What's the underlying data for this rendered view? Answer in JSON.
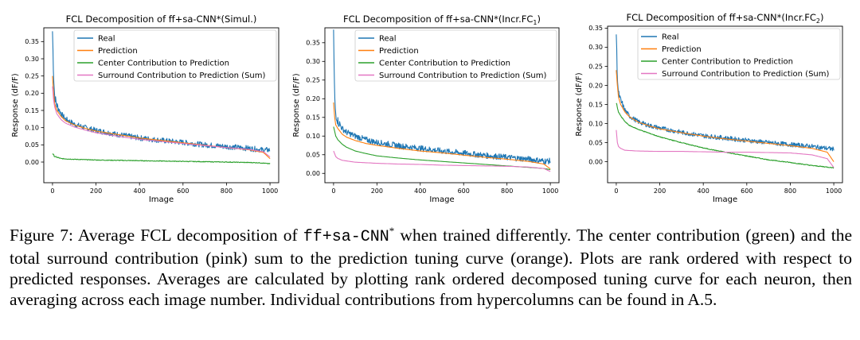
{
  "figure_number": "Figure 7:",
  "caption": {
    "pre": " Average FCL decomposition of ",
    "model_code": "ff+sa-CNN",
    "model_sup": "*",
    "post": " when trained differently. The center contribution (green) and the total surround contribution (pink) sum to the prediction tuning curve (orange). Plots are rank ordered with respect to predicted responses. Averages are calculated by plotting rank ordered decomposed tuning curve for each neuron, then averaging across each image number. Individual contributions from hypercolumns can be found in A.5."
  },
  "colors": {
    "real": "#1f77b4",
    "prediction": "#ff7f0e",
    "center": "#2ca02c",
    "surround": "#e377c2"
  },
  "chart_data": [
    {
      "type": "line",
      "title": "FCL Decomposition of ff+sa-CNN*(Simul.)",
      "title_sub": "",
      "title_end": "",
      "xlabel": "Image",
      "ylabel": "Response (dF/F)",
      "xlim": [
        -40,
        1040
      ],
      "ylim": [
        -0.06,
        0.39
      ],
      "xticks": [
        0,
        200,
        400,
        600,
        800,
        1000
      ],
      "yticks": [
        0.0,
        0.05,
        0.1,
        0.15,
        0.2,
        0.25,
        0.3,
        0.35
      ],
      "legend_position": "top-right",
      "series": [
        {
          "name": "Real",
          "key": "real",
          "noise": 0.008,
          "points": [
            [
              0,
              0.38
            ],
            [
              5,
              0.25
            ],
            [
              10,
              0.19
            ],
            [
              20,
              0.165
            ],
            [
              40,
              0.14
            ],
            [
              60,
              0.125
            ],
            [
              100,
              0.11
            ],
            [
              150,
              0.1
            ],
            [
              200,
              0.092
            ],
            [
              300,
              0.08
            ],
            [
              400,
              0.07
            ],
            [
              500,
              0.063
            ],
            [
              600,
              0.057
            ],
            [
              700,
              0.05
            ],
            [
              800,
              0.045
            ],
            [
              900,
              0.04
            ],
            [
              970,
              0.035
            ],
            [
              1000,
              0.035
            ]
          ]
        },
        {
          "name": "Prediction",
          "key": "prediction",
          "noise": 0,
          "points": [
            [
              0,
              0.25
            ],
            [
              5,
              0.2
            ],
            [
              10,
              0.17
            ],
            [
              20,
              0.15
            ],
            [
              40,
              0.132
            ],
            [
              60,
              0.12
            ],
            [
              100,
              0.108
            ],
            [
              150,
              0.098
            ],
            [
              200,
              0.09
            ],
            [
              300,
              0.08
            ],
            [
              400,
              0.07
            ],
            [
              500,
              0.063
            ],
            [
              600,
              0.056
            ],
            [
              700,
              0.049
            ],
            [
              800,
              0.042
            ],
            [
              900,
              0.036
            ],
            [
              970,
              0.028
            ],
            [
              1000,
              0.01
            ]
          ]
        },
        {
          "name": "Center Contribution to Prediction",
          "key": "center",
          "noise": 0.001,
          "points": [
            [
              0,
              0.025
            ],
            [
              10,
              0.016
            ],
            [
              40,
              0.01
            ],
            [
              100,
              0.008
            ],
            [
              200,
              0.006
            ],
            [
              400,
              0.004
            ],
            [
              600,
              0.002
            ],
            [
              800,
              0.0
            ],
            [
              950,
              -0.002
            ],
            [
              1000,
              -0.005
            ]
          ]
        },
        {
          "name": "Surround Contribution to Prediction (Sum)",
          "key": "surround",
          "noise": 0,
          "points": [
            [
              0,
              0.22
            ],
            [
              5,
              0.18
            ],
            [
              10,
              0.16
            ],
            [
              20,
              0.14
            ],
            [
              40,
              0.123
            ],
            [
              60,
              0.113
            ],
            [
              100,
              0.102
            ],
            [
              150,
              0.093
            ],
            [
              200,
              0.085
            ],
            [
              300,
              0.075
            ],
            [
              400,
              0.066
            ],
            [
              500,
              0.06
            ],
            [
              600,
              0.054
            ],
            [
              700,
              0.048
            ],
            [
              800,
              0.042
            ],
            [
              900,
              0.037
            ],
            [
              970,
              0.03
            ],
            [
              1000,
              0.015
            ]
          ]
        }
      ]
    },
    {
      "type": "line",
      "title": "FCL Decomposition of ff+sa-CNN*(Incr.FC",
      "title_sub": "1",
      "title_end": ")",
      "xlabel": "Image",
      "ylabel": "Response (dF/F)",
      "xlim": [
        -40,
        1040
      ],
      "ylim": [
        -0.025,
        0.39
      ],
      "xticks": [
        0,
        200,
        400,
        600,
        800,
        1000
      ],
      "yticks": [
        0.0,
        0.05,
        0.1,
        0.15,
        0.2,
        0.25,
        0.3,
        0.35
      ],
      "legend_position": "top-right",
      "series": [
        {
          "name": "Real",
          "key": "real",
          "noise": 0.008,
          "points": [
            [
              0,
              0.38
            ],
            [
              5,
              0.2
            ],
            [
              10,
              0.16
            ],
            [
              20,
              0.14
            ],
            [
              40,
              0.12
            ],
            [
              60,
              0.11
            ],
            [
              100,
              0.1
            ],
            [
              150,
              0.09
            ],
            [
              200,
              0.083
            ],
            [
              300,
              0.074
            ],
            [
              400,
              0.067
            ],
            [
              500,
              0.06
            ],
            [
              600,
              0.054
            ],
            [
              700,
              0.048
            ],
            [
              800,
              0.043
            ],
            [
              900,
              0.038
            ],
            [
              970,
              0.033
            ],
            [
              1000,
              0.033
            ]
          ]
        },
        {
          "name": "Prediction",
          "key": "prediction",
          "noise": 0,
          "points": [
            [
              0,
              0.19
            ],
            [
              5,
              0.15
            ],
            [
              10,
              0.13
            ],
            [
              20,
              0.12
            ],
            [
              40,
              0.105
            ],
            [
              60,
              0.097
            ],
            [
              100,
              0.088
            ],
            [
              150,
              0.08
            ],
            [
              200,
              0.075
            ],
            [
              300,
              0.067
            ],
            [
              400,
              0.06
            ],
            [
              500,
              0.055
            ],
            [
              600,
              0.049
            ],
            [
              700,
              0.043
            ],
            [
              800,
              0.038
            ],
            [
              900,
              0.032
            ],
            [
              970,
              0.025
            ],
            [
              1000,
              0.012
            ]
          ]
        },
        {
          "name": "Center Contribution to Prediction",
          "key": "center",
          "noise": 0,
          "points": [
            [
              0,
              0.125
            ],
            [
              10,
              0.1
            ],
            [
              20,
              0.09
            ],
            [
              40,
              0.078
            ],
            [
              60,
              0.07
            ],
            [
              100,
              0.06
            ],
            [
              150,
              0.053
            ],
            [
              200,
              0.047
            ],
            [
              300,
              0.041
            ],
            [
              400,
              0.036
            ],
            [
              500,
              0.032
            ],
            [
              600,
              0.028
            ],
            [
              700,
              0.024
            ],
            [
              800,
              0.02
            ],
            [
              900,
              0.016
            ],
            [
              970,
              0.013
            ],
            [
              1000,
              0.01
            ]
          ]
        },
        {
          "name": "Surround Contribution to Prediction (Sum)",
          "key": "surround",
          "noise": 0,
          "points": [
            [
              0,
              0.06
            ],
            [
              10,
              0.045
            ],
            [
              20,
              0.04
            ],
            [
              40,
              0.035
            ],
            [
              100,
              0.03
            ],
            [
              200,
              0.027
            ],
            [
              300,
              0.025
            ],
            [
              400,
              0.024
            ],
            [
              500,
              0.022
            ],
            [
              600,
              0.021
            ],
            [
              700,
              0.02
            ],
            [
              800,
              0.019
            ],
            [
              900,
              0.017
            ],
            [
              970,
              0.013
            ],
            [
              1000,
              0.005
            ]
          ]
        }
      ]
    },
    {
      "type": "line",
      "title": "FCL Decomposition of ff+sa-CNN*(Incr.FC",
      "title_sub": "2",
      "title_end": ")",
      "xlabel": "Image",
      "ylabel": "Response (dF/F)",
      "xlim": [
        -40,
        1040
      ],
      "ylim": [
        -0.055,
        0.355
      ],
      "xticks": [
        0,
        200,
        400,
        600,
        800,
        1000
      ],
      "yticks": [
        0.0,
        0.05,
        0.1,
        0.15,
        0.2,
        0.25,
        0.3,
        0.35
      ],
      "legend_position": "top-right",
      "series": [
        {
          "name": "Real",
          "key": "real",
          "noise": 0.006,
          "points": [
            [
              0,
              0.335
            ],
            [
              5,
              0.22
            ],
            [
              10,
              0.18
            ],
            [
              20,
              0.16
            ],
            [
              40,
              0.135
            ],
            [
              60,
              0.12
            ],
            [
              100,
              0.105
            ],
            [
              150,
              0.095
            ],
            [
              200,
              0.088
            ],
            [
              300,
              0.077
            ],
            [
              400,
              0.068
            ],
            [
              500,
              0.062
            ],
            [
              600,
              0.056
            ],
            [
              700,
              0.05
            ],
            [
              800,
              0.045
            ],
            [
              900,
              0.04
            ],
            [
              970,
              0.035
            ],
            [
              1000,
              0.033
            ]
          ]
        },
        {
          "name": "Prediction",
          "key": "prediction",
          "noise": 0,
          "points": [
            [
              0,
              0.24
            ],
            [
              5,
              0.2
            ],
            [
              10,
              0.17
            ],
            [
              20,
              0.15
            ],
            [
              40,
              0.13
            ],
            [
              60,
              0.118
            ],
            [
              100,
              0.104
            ],
            [
              150,
              0.094
            ],
            [
              200,
              0.086
            ],
            [
              300,
              0.076
            ],
            [
              400,
              0.067
            ],
            [
              500,
              0.06
            ],
            [
              600,
              0.054
            ],
            [
              700,
              0.048
            ],
            [
              800,
              0.042
            ],
            [
              900,
              0.035
            ],
            [
              970,
              0.025
            ],
            [
              1000,
              0.0
            ]
          ]
        },
        {
          "name": "Center Contribution to Prediction",
          "key": "center",
          "noise": 0.001,
          "points": [
            [
              0,
              0.155
            ],
            [
              10,
              0.13
            ],
            [
              20,
              0.12
            ],
            [
              40,
              0.105
            ],
            [
              60,
              0.095
            ],
            [
              100,
              0.085
            ],
            [
              150,
              0.075
            ],
            [
              200,
              0.065
            ],
            [
              300,
              0.05
            ],
            [
              400,
              0.036
            ],
            [
              500,
              0.025
            ],
            [
              600,
              0.015
            ],
            [
              700,
              0.005
            ],
            [
              800,
              -0.002
            ],
            [
              900,
              -0.01
            ],
            [
              970,
              -0.014
            ],
            [
              1000,
              -0.016
            ]
          ]
        },
        {
          "name": "Surround Contribution to Prediction (Sum)",
          "key": "surround",
          "noise": 0,
          "points": [
            [
              0,
              0.083
            ],
            [
              5,
              0.05
            ],
            [
              10,
              0.04
            ],
            [
              20,
              0.035
            ],
            [
              40,
              0.03
            ],
            [
              100,
              0.028
            ],
            [
              200,
              0.027
            ],
            [
              300,
              0.027
            ],
            [
              400,
              0.026
            ],
            [
              500,
              0.025
            ],
            [
              600,
              0.025
            ],
            [
              700,
              0.024
            ],
            [
              800,
              0.023
            ],
            [
              900,
              0.018
            ],
            [
              970,
              0.008
            ],
            [
              1000,
              -0.015
            ]
          ]
        }
      ]
    }
  ]
}
